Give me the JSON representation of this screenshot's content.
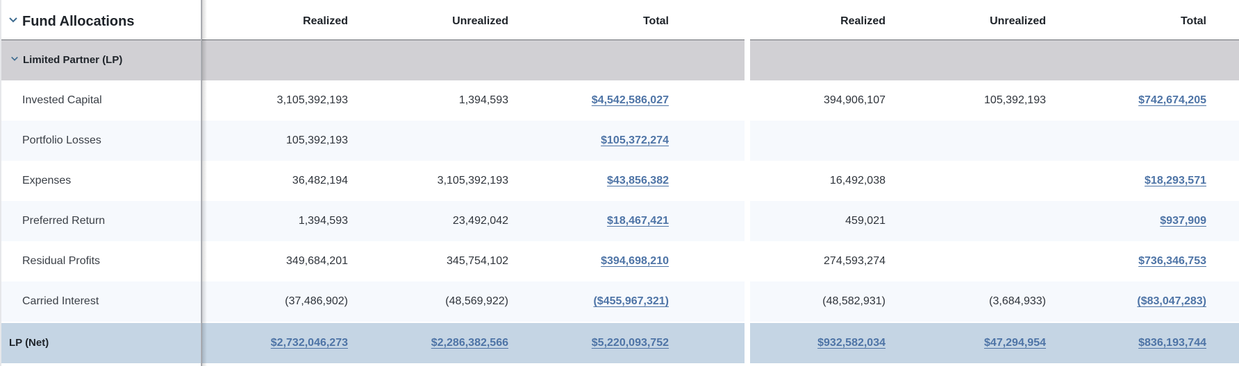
{
  "header": {
    "title": "Fund Allocations",
    "columns": [
      "Realized",
      "Unrealized",
      "Total",
      "Realized",
      "Unrealized",
      "Total"
    ]
  },
  "group": {
    "label": "Limited Partner (LP)"
  },
  "rows": [
    {
      "label": "Invested Capital",
      "values": [
        "3,105,392,193",
        "1,394,593",
        "$4,542,586,027",
        "394,906,107",
        "105,392,193",
        "$742,674,205"
      ]
    },
    {
      "label": "Portfolio Losses",
      "values": [
        "105,392,193",
        "",
        "$105,372,274",
        "",
        "",
        ""
      ]
    },
    {
      "label": "Expenses",
      "values": [
        "36,482,194",
        "3,105,392,193",
        "$43,856,382",
        "16,492,038",
        "",
        "$18,293,571"
      ]
    },
    {
      "label": "Preferred Return",
      "values": [
        "1,394,593",
        "23,492,042",
        "$18,467,421",
        "459,021",
        "",
        "$937,909"
      ]
    },
    {
      "label": "Residual Profits",
      "values": [
        "349,684,201",
        "345,754,102",
        "$394,698,210",
        "274,593,274",
        "",
        "$736,346,753"
      ]
    },
    {
      "label": "Carried Interest",
      "values": [
        "(37,486,902)",
        "(48,569,922)",
        "($455,967,321)",
        "(48,582,931)",
        "(3,684,933)",
        "($83,047,283)"
      ]
    }
  ],
  "net": {
    "label": "LP (Net)",
    "values": [
      "$2,732,046,273",
      "$2,286,382,566",
      "$5,220,093,752",
      "$932,582,034",
      "$47,294,954",
      "$836,193,744"
    ]
  },
  "colors": {
    "group_bg": "#d1d0d4",
    "alt_row_bg": "#f6f9fd",
    "net_bg": "#c5d5e4",
    "link": "#4e74a6",
    "chevron": "#3d6b8f"
  }
}
